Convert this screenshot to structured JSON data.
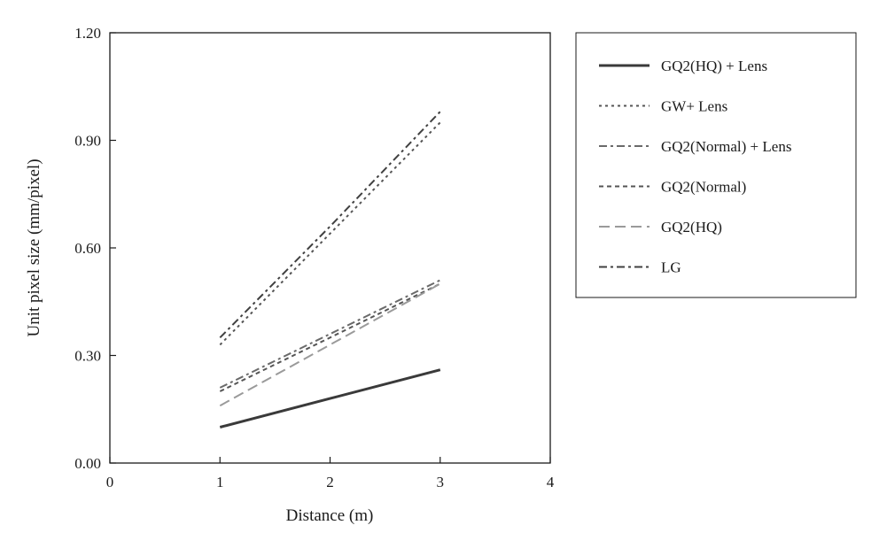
{
  "chart_data": {
    "type": "line",
    "xlabel": "Distance (m)",
    "ylabel": "Unit pixel size (mm/pixel)",
    "xlim": [
      0,
      4
    ],
    "ylim": [
      0,
      1.2
    ],
    "x_ticks": [
      "0",
      "1",
      "2",
      "3",
      "4"
    ],
    "y_ticks": [
      "0.00",
      "0.30",
      "0.60",
      "0.90",
      "1.20"
    ],
    "grid": false,
    "legend_position": "right",
    "series": [
      {
        "name": "GQ2(HQ) + Lens",
        "x": [
          1,
          2,
          3
        ],
        "y": [
          0.1,
          0.18,
          0.26
        ],
        "color": "#3a3a3a",
        "dash": "solid"
      },
      {
        "name": "GW+ Lens",
        "x": [
          1,
          2,
          3
        ],
        "y": [
          0.33,
          0.64,
          0.95
        ],
        "color": "#555555",
        "dash": "dotted"
      },
      {
        "name": "GQ2(Normal) + Lens",
        "x": [
          1,
          2,
          3
        ],
        "y": [
          0.21,
          0.36,
          0.51
        ],
        "color": "#6a6a6a",
        "dash": "dashdot"
      },
      {
        "name": "GQ2(Normal)",
        "x": [
          1,
          2,
          3
        ],
        "y": [
          0.2,
          0.35,
          0.5
        ],
        "color": "#555555",
        "dash": "dashed"
      },
      {
        "name": "GQ2(HQ)",
        "x": [
          1,
          2,
          3
        ],
        "y": [
          0.16,
          0.33,
          0.5
        ],
        "color": "#9a9a9a",
        "dash": "longdash"
      },
      {
        "name": "LG",
        "x": [
          1,
          2,
          3
        ],
        "y": [
          0.35,
          0.66,
          0.98
        ],
        "color": "#404040",
        "dash": "dashdot"
      }
    ]
  }
}
